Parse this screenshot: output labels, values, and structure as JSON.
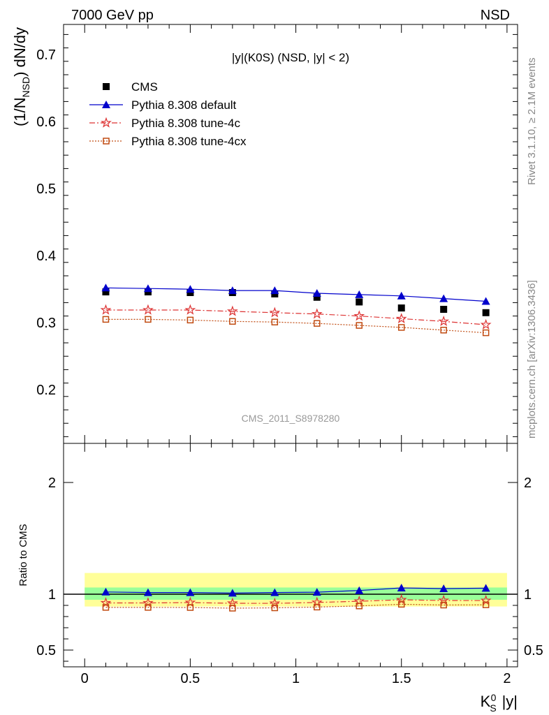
{
  "header": {
    "left": "7000 GeV pp",
    "right": "NSD"
  },
  "side_labels": {
    "rivet": "Rivet 3.1.10, ≥ 2.1M events",
    "mcplots": "mcplots.cern.ch [arXiv:1306.3436]"
  },
  "chart_data": [
    {
      "type": "scatter",
      "panel": "main",
      "title": "|y|(K0S) (NSD, |y| < 2)",
      "ylabel": "(1/N_NSD) dN/dy",
      "xlabel": "",
      "xlim": [
        -0.1,
        2.05
      ],
      "ylim": [
        0.12,
        0.745
      ],
      "yticks": [
        0.2,
        0.3,
        0.4,
        0.5,
        0.6,
        0.7
      ],
      "legend_position": "top-left",
      "watermark": "CMS_2011_S8978280",
      "x": [
        0.1,
        0.3,
        0.5,
        0.7,
        0.9,
        1.1,
        1.3,
        1.5,
        1.7,
        1.9
      ],
      "series": [
        {
          "name": "CMS",
          "color": "#000000",
          "marker": "square",
          "line": "none",
          "values": [
            0.346,
            0.346,
            0.345,
            0.345,
            0.343,
            0.338,
            0.331,
            0.322,
            0.32,
            0.315
          ]
        },
        {
          "name": "Pythia 8.308 default",
          "color": "#0000cc",
          "marker": "triangle",
          "line": "solid",
          "values": [
            0.352,
            0.351,
            0.35,
            0.348,
            0.348,
            0.344,
            0.342,
            0.34,
            0.336,
            0.332
          ]
        },
        {
          "name": "Pythia 8.308 tune-4c",
          "color": "#dd3333",
          "marker": "star",
          "line": "dashdot",
          "values": [
            0.319,
            0.319,
            0.319,
            0.317,
            0.315,
            0.313,
            0.31,
            0.306,
            0.302,
            0.297
          ]
        },
        {
          "name": "Pythia 8.308 tune-4cx",
          "color": "#c04a10",
          "marker": "open-square",
          "line": "dotted",
          "values": [
            0.305,
            0.305,
            0.304,
            0.302,
            0.301,
            0.299,
            0.296,
            0.293,
            0.289,
            0.285
          ]
        }
      ]
    },
    {
      "type": "line",
      "panel": "ratio",
      "ylabel": "Ratio to CMS",
      "xlabel": "K_S^0 |y|",
      "xlim": [
        -0.1,
        2.05
      ],
      "ylim": [
        0.35,
        2.35
      ],
      "yticks": [
        0.5,
        1,
        2
      ],
      "xticks": [
        0,
        0.5,
        1,
        1.5,
        2
      ],
      "reference": 1,
      "bands": [
        {
          "color": "#ffff99",
          "low": 0.89,
          "high": 1.19
        },
        {
          "color": "#99ff99",
          "low": 0.95,
          "high": 1.06
        }
      ],
      "x": [
        0.1,
        0.3,
        0.5,
        0.7,
        0.9,
        1.1,
        1.3,
        1.5,
        1.7,
        1.9
      ],
      "series": [
        {
          "name": "Pythia 8.308 default",
          "color": "#0000cc",
          "marker": "triangle",
          "line": "solid",
          "values": [
            1.02,
            1.015,
            1.015,
            1.01,
            1.015,
            1.018,
            1.033,
            1.056,
            1.05,
            1.054
          ]
        },
        {
          "name": "Pythia 8.308 tune-4c",
          "color": "#dd3333",
          "marker": "star",
          "line": "dashdot",
          "values": [
            0.922,
            0.922,
            0.925,
            0.919,
            0.918,
            0.926,
            0.937,
            0.95,
            0.944,
            0.943
          ]
        },
        {
          "name": "Pythia 8.308 tune-4cx",
          "color": "#c04a10",
          "marker": "open-square",
          "line": "dotted",
          "values": [
            0.882,
            0.882,
            0.881,
            0.875,
            0.878,
            0.885,
            0.895,
            0.91,
            0.903,
            0.905
          ]
        }
      ]
    }
  ]
}
